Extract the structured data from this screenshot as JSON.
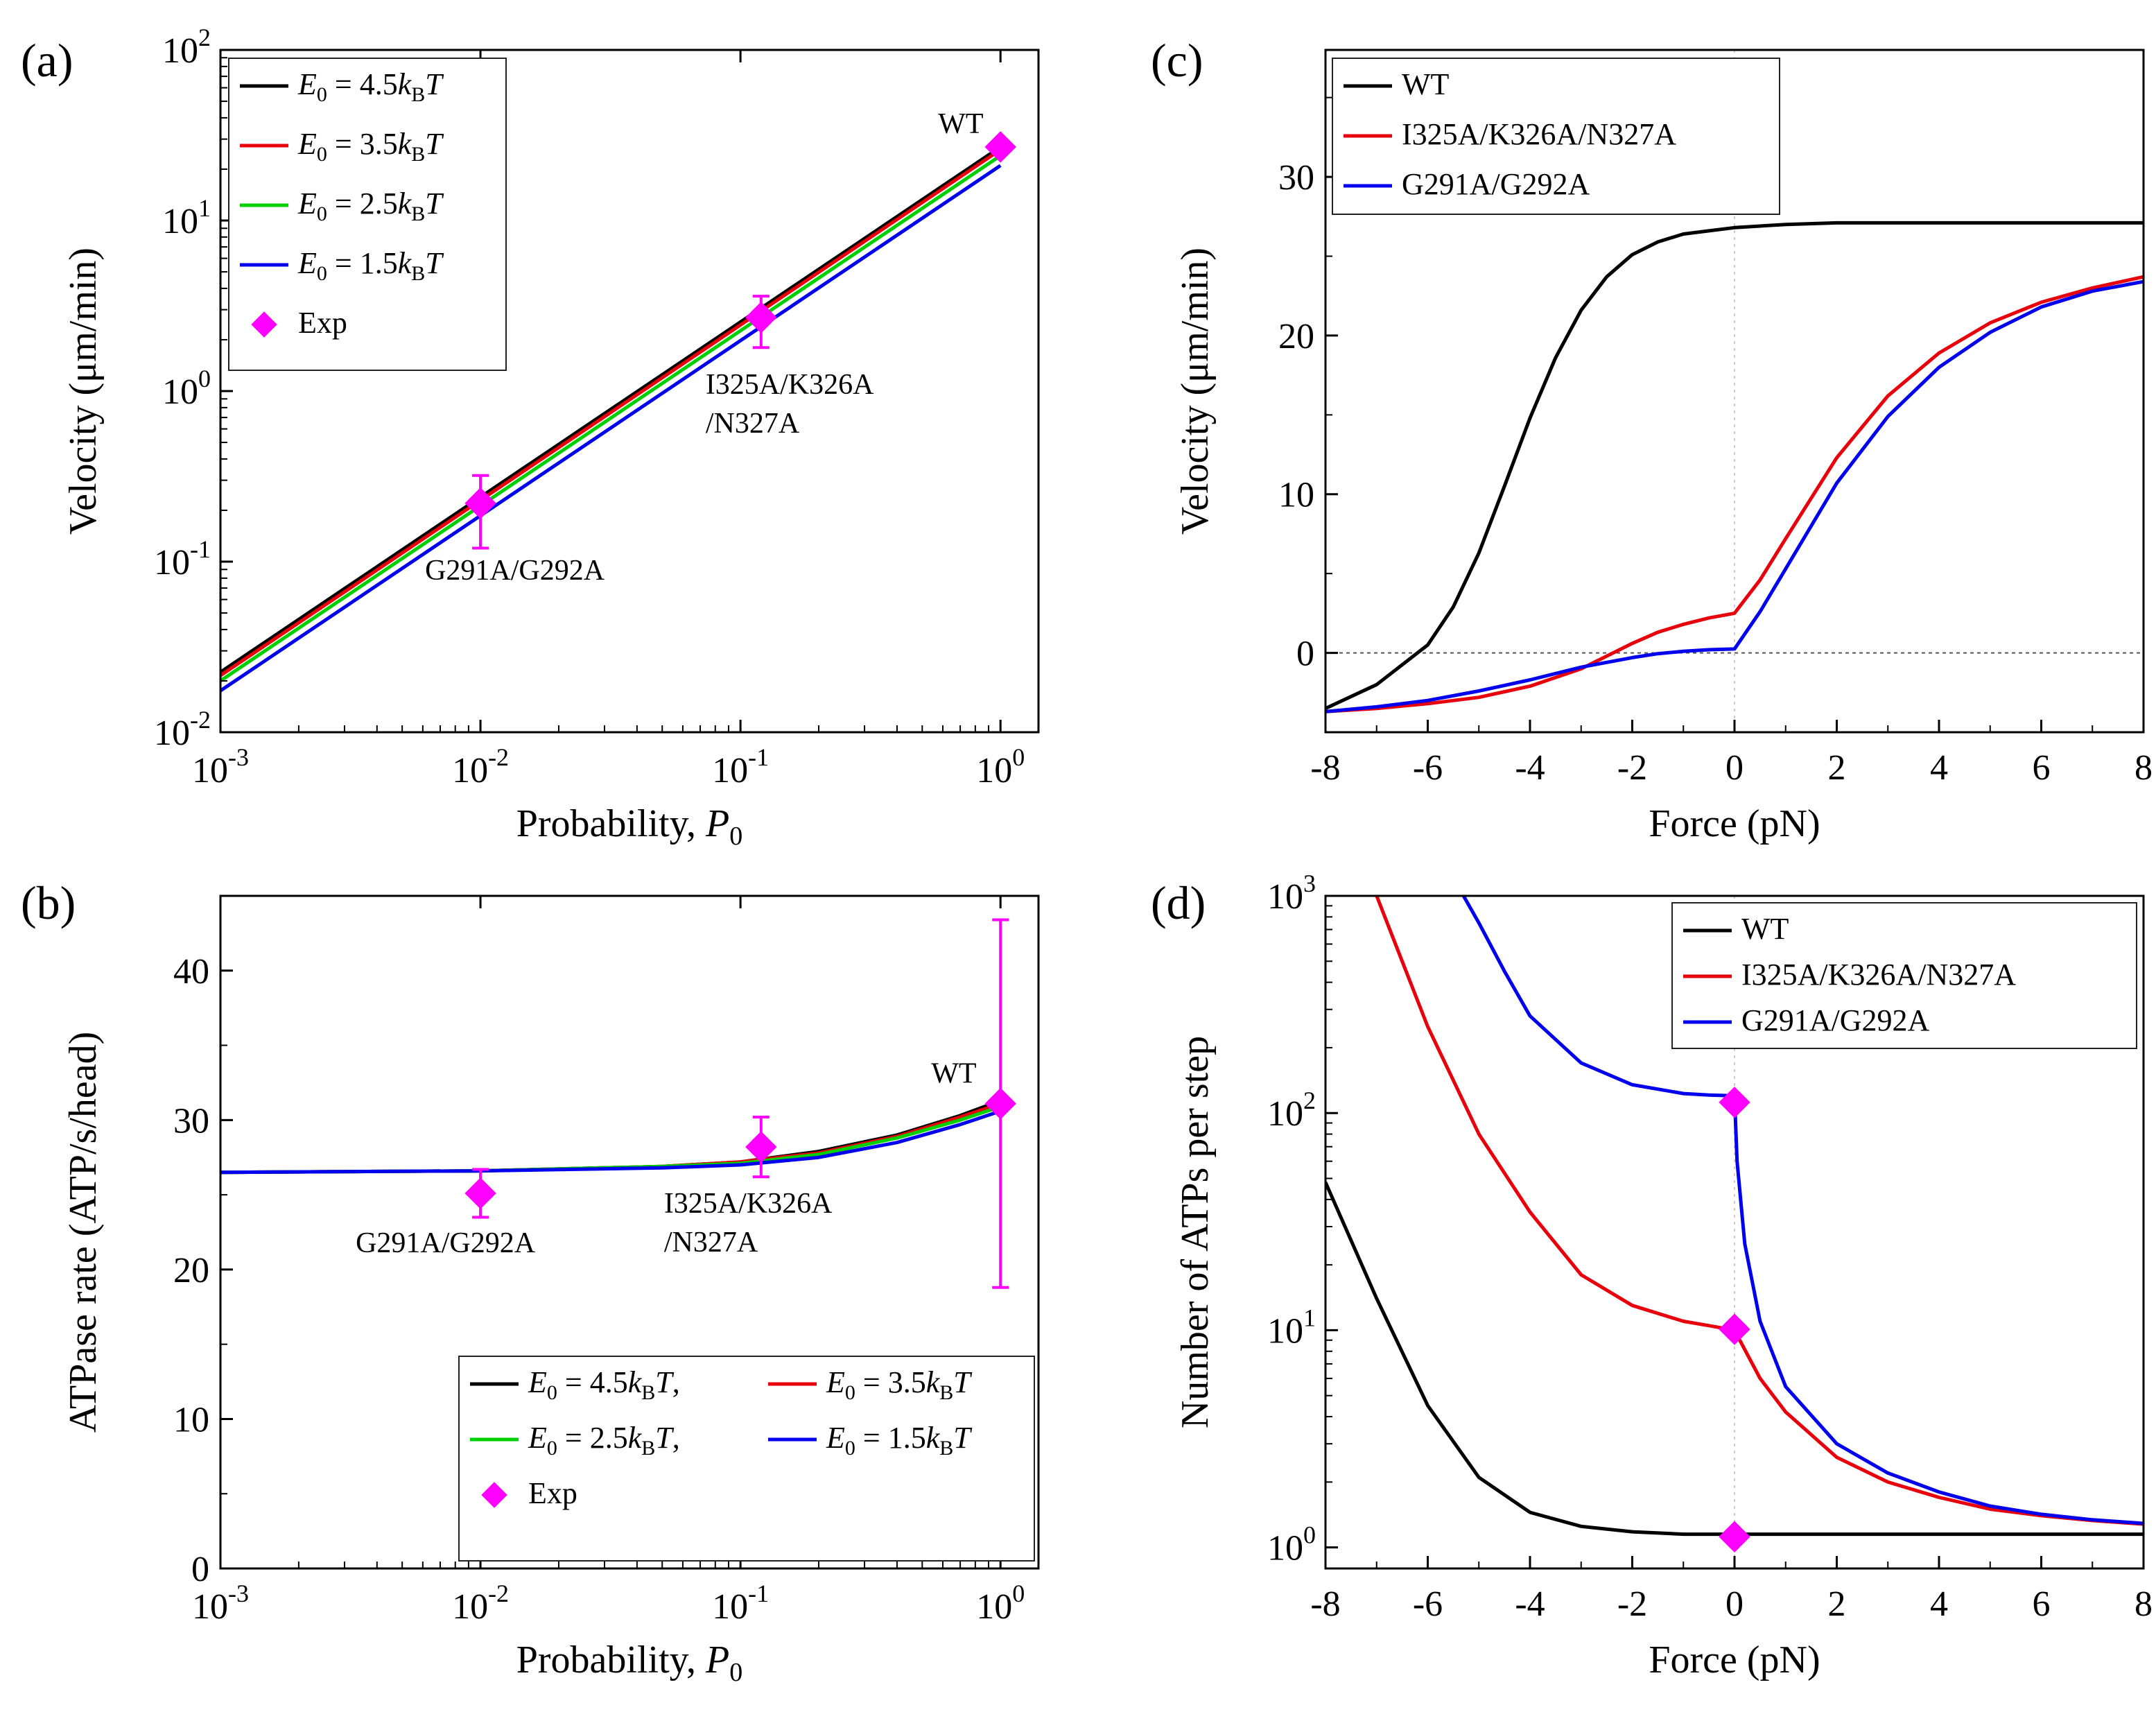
{
  "figure": {
    "panels": [
      "a",
      "b",
      "c",
      "d"
    ]
  },
  "chart_data": [
    {
      "panel_label": "(a)",
      "type": "line",
      "xlabel": "Probability, P0",
      "ylabel": "Velocity (μm/min)",
      "xscale": "log",
      "yscale": "log",
      "xlim": [
        0.001,
        1.4
      ],
      "ylim": [
        0.01,
        100
      ],
      "xtick_labels": [
        "10^-3",
        "10^-2",
        "10^-1",
        "10^0"
      ],
      "ytick_labels": [
        "10^-2",
        "10^-1",
        "10^0",
        "10^1",
        "10^2"
      ],
      "legend_position": "top-left",
      "legend": [
        "E0 = 4.5kBT",
        "E0 = 3.5kBT",
        "E0 = 2.5kBT",
        "E0 = 1.5kBT",
        "Exp"
      ],
      "series": [
        {
          "name": "E0 = 4.5kBT",
          "color": "#000000",
          "x": [
            0.001,
            1.0
          ],
          "y": [
            0.0225,
            27.0
          ]
        },
        {
          "name": "E0 = 3.5kBT",
          "color": "#e8000b",
          "x": [
            0.001,
            1.0
          ],
          "y": [
            0.0215,
            26.0
          ]
        },
        {
          "name": "E0 = 2.5kBT",
          "color": "#00d000",
          "x": [
            0.001,
            1.0
          ],
          "y": [
            0.02,
            24.0
          ]
        },
        {
          "name": "E0 = 1.5kBT",
          "color": "#0000ee",
          "x": [
            0.001,
            1.0
          ],
          "y": [
            0.0175,
            21.0
          ]
        }
      ],
      "experiment": {
        "name": "Exp",
        "color": "#ff00ff",
        "points": [
          {
            "label": "G291A/G292A",
            "x": 0.01,
            "y": 0.22,
            "ylo": 0.12,
            "yhi": 0.32
          },
          {
            "label": "I325A/K326A /N327A",
            "x": 0.12,
            "y": 2.7,
            "ylo": 1.8,
            "yhi": 3.6
          },
          {
            "label": "WT",
            "x": 1.0,
            "y": 27.0,
            "ylo": 27.0,
            "yhi": 27.0
          }
        ]
      }
    },
    {
      "panel_label": "(b)",
      "type": "line",
      "xlabel": "Probability, P0",
      "ylabel": "ATPase rate (ATP/s/head)",
      "xscale": "log",
      "yscale": "linear",
      "xlim": [
        0.001,
        1.4
      ],
      "ylim": [
        0,
        45
      ],
      "xtick_labels": [
        "10^-3",
        "10^-2",
        "10^-1",
        "10^0"
      ],
      "ytick_labels": [
        "0",
        "10",
        "20",
        "30",
        "40"
      ],
      "legend_position": "bottom-right",
      "legend": [
        "E0 = 4.5kBT,",
        "E0 = 3.5kBT",
        "E0 = 2.5kBT,",
        "E0 = 1.5kBT",
        "Exp"
      ],
      "series": [
        {
          "name": "E0 = 4.5kBT",
          "color": "#000000",
          "x": [
            0.001,
            0.01,
            0.05,
            0.1,
            0.2,
            0.4,
            0.7,
            1.0
          ],
          "y": [
            26.5,
            26.6,
            26.9,
            27.2,
            27.9,
            29.0,
            30.3,
            31.3
          ]
        },
        {
          "name": "E0 = 3.5kBT",
          "color": "#e8000b",
          "x": [
            0.001,
            0.01,
            0.05,
            0.1,
            0.2,
            0.4,
            0.7,
            1.0
          ],
          "y": [
            26.5,
            26.6,
            26.9,
            27.2,
            27.8,
            28.9,
            30.2,
            31.1
          ]
        },
        {
          "name": "E0 = 2.5kBT",
          "color": "#00d000",
          "x": [
            0.001,
            0.01,
            0.05,
            0.1,
            0.2,
            0.4,
            0.7,
            1.0
          ],
          "y": [
            26.5,
            26.6,
            26.9,
            27.1,
            27.7,
            28.8,
            30.0,
            30.9
          ]
        },
        {
          "name": "E0 = 1.5kBT",
          "color": "#0000ee",
          "x": [
            0.001,
            0.01,
            0.05,
            0.1,
            0.2,
            0.4,
            0.7,
            1.0
          ],
          "y": [
            26.5,
            26.6,
            26.8,
            27.0,
            27.5,
            28.5,
            29.7,
            30.6
          ]
        }
      ],
      "experiment": {
        "name": "Exp",
        "color": "#ff00ff",
        "points": [
          {
            "label": "G291A/G292A",
            "x": 0.01,
            "y": 25.1,
            "ylo": 23.5,
            "yhi": 26.7
          },
          {
            "label": "I325A/K326A /N327A",
            "x": 0.12,
            "y": 28.2,
            "ylo": 26.2,
            "yhi": 30.2
          },
          {
            "label": "WT",
            "x": 1.0,
            "y": 31.1,
            "ylo": 18.8,
            "yhi": 43.4
          }
        ]
      }
    },
    {
      "panel_label": "(c)",
      "type": "line",
      "xlabel": "Force (pN)",
      "ylabel": "Velocity (μm/min)",
      "xscale": "linear",
      "yscale": "linear",
      "xlim": [
        -8,
        8
      ],
      "ylim": [
        -5,
        38
      ],
      "xticks": [
        -8,
        -6,
        -4,
        -2,
        0,
        2,
        4,
        6,
        8
      ],
      "yticks": [
        0,
        10,
        20,
        30
      ],
      "reference_lines": {
        "horizontal": 0,
        "vertical": 0
      },
      "legend_position": "top-left",
      "legend": [
        "WT",
        "I325A/K326A/N327A",
        "G291A/G292A"
      ],
      "series": [
        {
          "name": "WT",
          "color": "#000000",
          "x": [
            -8,
            -7,
            -6,
            -5.5,
            -5,
            -4.5,
            -4,
            -3.5,
            -3,
            -2.5,
            -2,
            -1.5,
            -1,
            -0.5,
            0,
            1,
            2,
            4,
            8
          ],
          "y": [
            -3.5,
            -2.0,
            0.5,
            2.9,
            6.3,
            10.5,
            14.8,
            18.6,
            21.6,
            23.7,
            25.1,
            25.9,
            26.4,
            26.6,
            26.8,
            27.0,
            27.1,
            27.1,
            27.1
          ]
        },
        {
          "name": "I325A/K326A/N327A",
          "color": "#e8000b",
          "x": [
            -8,
            -7,
            -6,
            -5,
            -4,
            -3,
            -2.5,
            -2,
            -1.5,
            -1,
            -0.5,
            0,
            0.5,
            1,
            2,
            3,
            4,
            5,
            6,
            7,
            8
          ],
          "y": [
            -3.7,
            -3.5,
            -3.2,
            -2.8,
            -2.1,
            -1.0,
            -0.2,
            0.6,
            1.3,
            1.8,
            2.2,
            2.5,
            4.6,
            7.2,
            12.3,
            16.2,
            18.9,
            20.8,
            22.1,
            23.0,
            23.7
          ]
        },
        {
          "name": "G291A/G292A",
          "color": "#0000ee",
          "x": [
            -8,
            -7,
            -6,
            -5,
            -4,
            -3,
            -2,
            -1.5,
            -1,
            -0.5,
            0,
            0.5,
            1,
            2,
            3,
            4,
            5,
            6,
            7,
            8
          ],
          "y": [
            -3.7,
            -3.4,
            -3.0,
            -2.4,
            -1.7,
            -0.9,
            -0.3,
            -0.05,
            0.1,
            0.2,
            0.25,
            2.6,
            5.3,
            10.7,
            14.9,
            18.0,
            20.2,
            21.8,
            22.8,
            23.4
          ]
        }
      ]
    },
    {
      "panel_label": "(d)",
      "type": "line",
      "xlabel": "Force (pN)",
      "ylabel": "Number of ATPs per step",
      "xscale": "linear",
      "yscale": "log",
      "xlim": [
        -8,
        8
      ],
      "ylim": [
        0.8,
        1000
      ],
      "xticks": [
        -8,
        -6,
        -4,
        -2,
        0,
        2,
        4,
        6,
        8
      ],
      "ytick_labels": [
        "10^0",
        "10^1",
        "10^2",
        "10^3"
      ],
      "reference_lines": {
        "vertical": 0
      },
      "legend_position": "top-right",
      "legend": [
        "WT",
        "I325A/K326A/N327A",
        "G291A/G292A"
      ],
      "series": [
        {
          "name": "WT",
          "color": "#000000",
          "x": [
            -8,
            -7,
            -6,
            -5,
            -4,
            -3,
            -2,
            -1,
            0,
            2,
            4,
            6,
            8
          ],
          "y": [
            48,
            14,
            4.5,
            2.1,
            1.45,
            1.25,
            1.18,
            1.15,
            1.15,
            1.15,
            1.15,
            1.15,
            1.15
          ]
        },
        {
          "name": "I325A/K326A/N327A",
          "color": "#e8000b",
          "x": [
            -7.0,
            -6.5,
            -6,
            -5,
            -4,
            -3,
            -2,
            -1,
            -0.5,
            0,
            0.5,
            1,
            2,
            3,
            4,
            5,
            6,
            7,
            8
          ],
          "y": [
            1000,
            500,
            250,
            80,
            35,
            18,
            13,
            11,
            10.5,
            10,
            6,
            4.2,
            2.6,
            2.0,
            1.7,
            1.5,
            1.4,
            1.33,
            1.28
          ]
        },
        {
          "name": "G291A/G292A",
          "color": "#0000ee",
          "x": [
            -5.3,
            -5,
            -4.5,
            -4,
            -3,
            -2,
            -1,
            -0.5,
            0,
            0.05,
            0.2,
            0.5,
            1,
            2,
            3,
            4,
            5,
            6,
            7,
            8
          ],
          "y": [
            1000,
            750,
            450,
            280,
            170,
            135,
            123,
            121,
            120,
            60,
            25,
            11,
            5.5,
            3.0,
            2.2,
            1.8,
            1.55,
            1.42,
            1.34,
            1.29
          ]
        }
      ],
      "experiment": {
        "color": "#ff00ff",
        "points": [
          {
            "x": 0,
            "y": 112
          },
          {
            "x": 0,
            "y": 10.1
          },
          {
            "x": 0,
            "y": 1.12
          }
        ]
      }
    }
  ]
}
